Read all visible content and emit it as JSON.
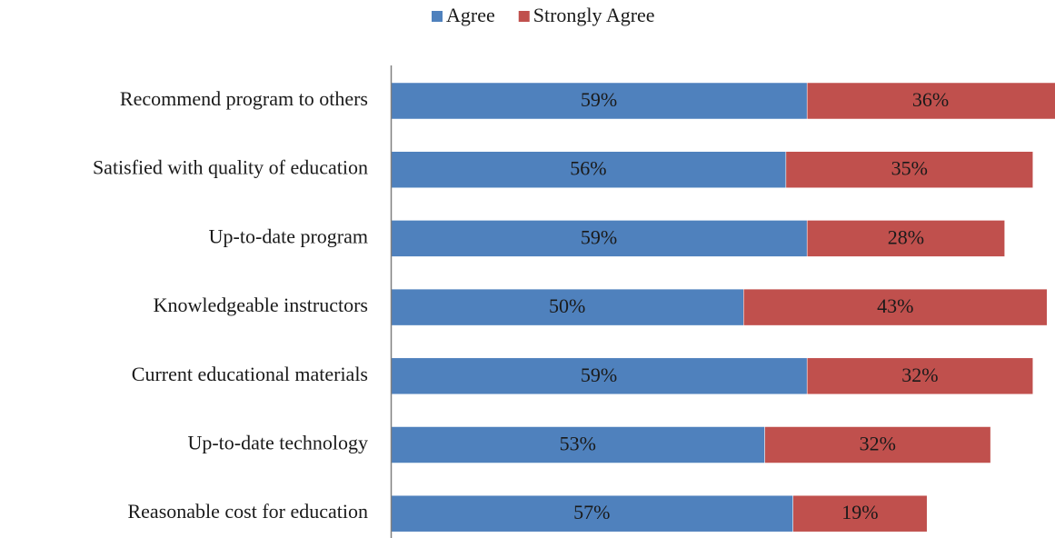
{
  "chart_data": {
    "type": "stacked-barh",
    "categories": [
      "Recommend program to others",
      "Satisfied with quality of education",
      "Up-to-date program",
      "Knowledgeable instructors",
      "Current educational materials",
      "Up-to-date technology",
      "Reasonable cost for education"
    ],
    "series": [
      {
        "name": "Agree",
        "color": "#4f81bd",
        "values": [
          59,
          56,
          59,
          50,
          59,
          53,
          57
        ],
        "value_labels": [
          "59%",
          "56%",
          "59%",
          "50%",
          "59%",
          "53%",
          "57%"
        ]
      },
      {
        "name": "Strongly Agree",
        "color": "#c0504d",
        "values": [
          36,
          35,
          28,
          43,
          32,
          32,
          19
        ],
        "value_labels": [
          "36%",
          "35%",
          "28%",
          "43%",
          "32%",
          "32%",
          "19%"
        ]
      }
    ],
    "xlim": [
      0,
      94
    ],
    "legend": "top"
  }
}
